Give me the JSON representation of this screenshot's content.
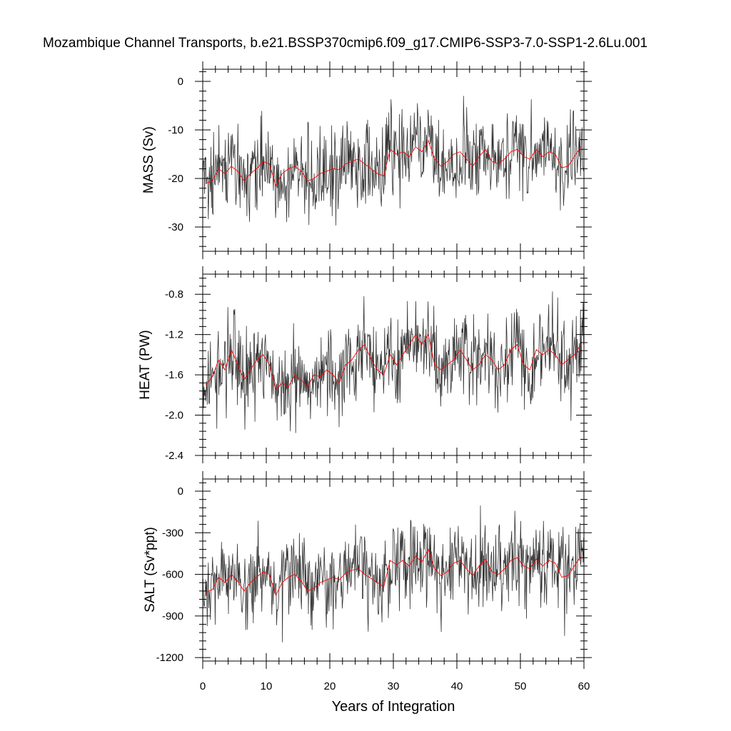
{
  "chart_data": {
    "type": "line",
    "title": "Mozambique Channel Transports, b.e21.BSSP370cmip6.f09_g17.CMIP6-SSP3-7.0-SSP1-2.6Lu.001",
    "xlabel": "Years of Integration",
    "xlim": [
      0,
      60
    ],
    "xticks": [
      0,
      10,
      20,
      30,
      40,
      50,
      60
    ],
    "grid": false,
    "legend": "none",
    "colors": {
      "monthly": "#333333",
      "annual": "#ff0000",
      "axis": "#000000"
    },
    "panels": [
      {
        "ylabel": "MASS (Sv)",
        "ylim": [
          -35,
          2.5
        ],
        "yticks": [
          0,
          -10,
          -20,
          -30
        ],
        "annual": {
          "x": [
            0.5,
            1.5,
            2.5,
            3.5,
            4.5,
            5.5,
            6.5,
            7.5,
            8.5,
            9.5,
            10.5,
            11.5,
            12.5,
            13.5,
            14.5,
            15.5,
            16.5,
            17.5,
            18.5,
            19.5,
            20.5,
            21.5,
            22.5,
            23.5,
            24.5,
            25.5,
            26.5,
            27.5,
            28.5,
            29.5,
            30.5,
            31.5,
            32.5,
            33.5,
            34.5,
            35.5,
            36.5,
            37.5,
            38.5,
            39.5,
            40.5,
            41.5,
            42.5,
            43.5,
            44.5,
            45.5,
            46.5,
            47.5,
            48.5,
            49.5,
            50.5,
            51.5,
            52.5,
            53.5,
            54.5,
            55.5,
            56.5,
            57.5,
            58.5,
            59.5
          ],
          "y": [
            -21,
            -20.5,
            -18,
            -19,
            -17.5,
            -18.5,
            -20.5,
            -19,
            -18,
            -16.5,
            -17,
            -21.5,
            -19,
            -18,
            -17.5,
            -18.5,
            -20.5,
            -20,
            -19,
            -18.5,
            -18,
            -18.2,
            -17,
            -16.5,
            -16,
            -17,
            -18,
            -19,
            -19.5,
            -14,
            -15,
            -14.5,
            -15.5,
            -13.5,
            -14.5,
            -12.2,
            -16,
            -17.5,
            -16.5,
            -15,
            -14.5,
            -16,
            -17.5,
            -15.5,
            -14,
            -16.5,
            -17,
            -16,
            -14.5,
            -14,
            -15.5,
            -16,
            -14,
            -15.5,
            -14.5,
            -15,
            -17.8,
            -17.5,
            -15.5,
            -13.5
          ]
        }
      },
      {
        "ylabel": "HEAT (PW)",
        "ylim": [
          -2.4,
          -0.6
        ],
        "yticks": [
          -0.8,
          -1.2,
          -1.6,
          -2.0,
          -2.4
        ],
        "annual": {
          "x": [
            0.5,
            1.5,
            2.5,
            3.5,
            4.5,
            5.5,
            6.5,
            7.5,
            8.5,
            9.5,
            10.5,
            11.5,
            12.5,
            13.5,
            14.5,
            15.5,
            16.5,
            17.5,
            18.5,
            19.5,
            20.5,
            21.5,
            22.5,
            23.5,
            24.5,
            25.5,
            26.5,
            27.5,
            28.5,
            29.5,
            30.5,
            31.5,
            32.5,
            33.5,
            34.5,
            35.5,
            36.5,
            37.5,
            38.5,
            39.5,
            40.5,
            41.5,
            42.5,
            43.5,
            44.5,
            45.5,
            46.5,
            47.5,
            48.5,
            49.5,
            50.5,
            51.5,
            52.5,
            53.5,
            54.5,
            55.5,
            56.5,
            57.5,
            58.5,
            59.5
          ],
          "y": [
            -1.7,
            -1.62,
            -1.45,
            -1.55,
            -1.35,
            -1.5,
            -1.65,
            -1.55,
            -1.45,
            -1.4,
            -1.5,
            -1.75,
            -1.68,
            -1.72,
            -1.6,
            -1.65,
            -1.72,
            -1.6,
            -1.62,
            -1.55,
            -1.6,
            -1.68,
            -1.5,
            -1.45,
            -1.35,
            -1.3,
            -1.45,
            -1.55,
            -1.6,
            -1.4,
            -1.5,
            -1.4,
            -1.3,
            -1.2,
            -1.3,
            -1.2,
            -1.5,
            -1.55,
            -1.5,
            -1.45,
            -1.35,
            -1.45,
            -1.55,
            -1.5,
            -1.4,
            -1.45,
            -1.55,
            -1.5,
            -1.35,
            -1.3,
            -1.5,
            -1.55,
            -1.35,
            -1.4,
            -1.35,
            -1.4,
            -1.5,
            -1.45,
            -1.4,
            -1.3
          ]
        }
      },
      {
        "ylabel": "SALT (Sv*ppt)",
        "ylim": [
          -1225,
          87.5
        ],
        "yticks": [
          0,
          -300,
          -600,
          -900,
          -1200
        ],
        "annual": {
          "x": [
            0.5,
            1.5,
            2.5,
            3.5,
            4.5,
            5.5,
            6.5,
            7.5,
            8.5,
            9.5,
            10.5,
            11.5,
            12.5,
            13.5,
            14.5,
            15.5,
            16.5,
            17.5,
            18.5,
            19.5,
            20.5,
            21.5,
            22.5,
            23.5,
            24.5,
            25.5,
            26.5,
            27.5,
            28.5,
            29.5,
            30.5,
            31.5,
            32.5,
            33.5,
            34.5,
            35.5,
            36.5,
            37.5,
            38.5,
            39.5,
            40.5,
            41.5,
            42.5,
            43.5,
            44.5,
            45.5,
            46.5,
            47.5,
            48.5,
            49.5,
            50.5,
            51.5,
            52.5,
            53.5,
            54.5,
            55.5,
            56.5,
            57.5,
            58.5,
            59.5
          ],
          "y": [
            -730,
            -710,
            -620,
            -660,
            -600,
            -650,
            -720,
            -660,
            -620,
            -580,
            -600,
            -750,
            -660,
            -620,
            -600,
            -650,
            -720,
            -700,
            -660,
            -640,
            -620,
            -640,
            -590,
            -570,
            -560,
            -600,
            -630,
            -660,
            -690,
            -500,
            -530,
            -500,
            -540,
            -470,
            -510,
            -420,
            -560,
            -610,
            -580,
            -520,
            -500,
            -560,
            -610,
            -540,
            -490,
            -580,
            -600,
            -560,
            -500,
            -480,
            -540,
            -560,
            -490,
            -540,
            -500,
            -520,
            -620,
            -610,
            -540,
            -470
          ]
        }
      }
    ]
  }
}
